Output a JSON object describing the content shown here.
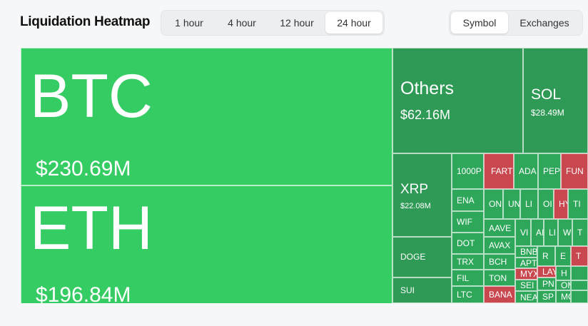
{
  "header": {
    "title": "Liquidation Heatmap",
    "time_tabs": [
      "1 hour",
      "4 hour",
      "12 hour",
      "24 hour"
    ],
    "time_active": "24 hour",
    "view_tabs": [
      "Symbol",
      "Exchanges"
    ],
    "view_active": "Symbol"
  },
  "heatmap": {
    "btc": {
      "symbol": "BTC",
      "value": "$230.69M"
    },
    "eth": {
      "symbol": "ETH",
      "value": "$196.84M"
    },
    "others": {
      "symbol": "Others",
      "value": "$62.16M"
    },
    "sol": {
      "symbol": "SOL",
      "value": "$28.49M"
    },
    "xrp": {
      "symbol": "XRP",
      "value": "$22.08M"
    },
    "doge": "DOGE",
    "sui": "SUI",
    "row_labels": [
      "1000P",
      "ENA",
      "WIF",
      "DOT",
      "TRX",
      "FIL",
      "LTC"
    ],
    "partial_labels": [
      "FARTC",
      "ADA",
      "PEP",
      "FUN",
      "ON",
      "UN",
      "LI",
      "OI",
      "HY",
      "TI",
      "AAVE",
      "VI",
      "AI",
      "LI",
      "W",
      "T",
      "AVAX",
      "BNB",
      "R",
      "E",
      "T",
      "BCH",
      "APT",
      "MYX",
      "LAY",
      "H",
      "TON",
      "SEI",
      "PN",
      "OM",
      "BANA",
      "NEA",
      "SP",
      "MC"
    ],
    "colors": {
      "green": "#34cc63",
      "mid_green": "#2fa75a",
      "dark_green": "#2e9a56",
      "red": "#c9474f"
    }
  }
}
